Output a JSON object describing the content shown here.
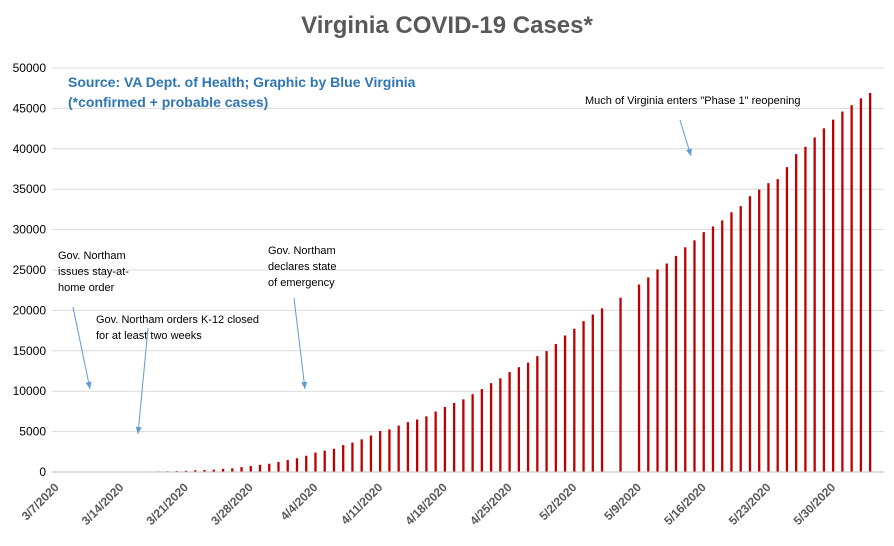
{
  "colors": {
    "bar": "#C00000",
    "grid": "#D9D9D9",
    "arrow": "#5B9BD5",
    "source": "#2E75B6",
    "title": "#595959"
  },
  "chart_data": {
    "type": "bar",
    "title": "Virginia COVID-19 Cases*",
    "source_line1": "Source: VA Dept. of Health; Graphic by Blue Virginia",
    "source_line2": "(*confirmed + probable cases)",
    "ylim": [
      0,
      50000
    ],
    "yticks": [
      0,
      5000,
      10000,
      15000,
      20000,
      25000,
      30000,
      35000,
      40000,
      45000,
      50000
    ],
    "grid": true,
    "start_date": "3/7/2020",
    "xtick_labels": [
      "3/7/2020",
      "3/14/2020",
      "3/21/2020",
      "3/28/2020",
      "4/4/2020",
      "4/11/2020",
      "4/18/2020",
      "4/25/2020",
      "5/2/2020",
      "5/9/2020",
      "5/16/2020",
      "5/23/2020",
      "5/30/2020"
    ],
    "x": [
      "3/7/2020",
      "3/8/2020",
      "3/9/2020",
      "3/10/2020",
      "3/11/2020",
      "3/12/2020",
      "3/13/2020",
      "3/14/2020",
      "3/15/2020",
      "3/16/2020",
      "3/17/2020",
      "3/18/2020",
      "3/19/2020",
      "3/20/2020",
      "3/21/2020",
      "3/22/2020",
      "3/23/2020",
      "3/24/2020",
      "3/25/2020",
      "3/26/2020",
      "3/27/2020",
      "3/28/2020",
      "3/29/2020",
      "3/30/2020",
      "3/31/2020",
      "4/1/2020",
      "4/2/2020",
      "4/3/2020",
      "4/4/2020",
      "4/5/2020",
      "4/6/2020",
      "4/7/2020",
      "4/8/2020",
      "4/9/2020",
      "4/10/2020",
      "4/11/2020",
      "4/12/2020",
      "4/13/2020",
      "4/14/2020",
      "4/15/2020",
      "4/16/2020",
      "4/17/2020",
      "4/18/2020",
      "4/19/2020",
      "4/20/2020",
      "4/21/2020",
      "4/22/2020",
      "4/23/2020",
      "4/24/2020",
      "4/25/2020",
      "4/26/2020",
      "4/27/2020",
      "4/28/2020",
      "4/29/2020",
      "4/30/2020",
      "5/1/2020",
      "5/2/2020",
      "5/3/2020",
      "5/4/2020",
      "5/5/2020",
      "5/6/2020",
      "5/7/2020",
      "5/8/2020",
      "5/9/2020",
      "5/10/2020",
      "5/11/2020",
      "5/12/2020",
      "5/13/2020",
      "5/14/2020",
      "5/15/2020",
      "5/16/2020",
      "5/17/2020",
      "5/18/2020",
      "5/19/2020",
      "5/20/2020",
      "5/21/2020",
      "5/22/2020",
      "5/23/2020",
      "5/24/2020",
      "5/25/2020",
      "5/26/2020",
      "5/27/2020",
      "5/28/2020",
      "5/29/2020",
      "5/30/2020",
      "5/31/2020",
      "6/1/2020",
      "6/2/2020",
      "6/3/2020",
      "6/4/2020"
    ],
    "values": [
      2,
      2,
      5,
      9,
      9,
      17,
      30,
      41,
      45,
      51,
      67,
      77,
      94,
      114,
      152,
      219,
      254,
      290,
      391,
      460,
      604,
      739,
      890,
      1020,
      1250,
      1484,
      1706,
      2012,
      2407,
      2637,
      2878,
      3333,
      3645,
      4042,
      4509,
      5077,
      5274,
      5747,
      6171,
      6500,
      6889,
      7491,
      8053,
      8537,
      8990,
      9630,
      10266,
      10998,
      11594,
      12366,
      12970,
      13535,
      14339,
      14961,
      15846,
      16901,
      17731,
      18671,
      19492,
      20256,
      null,
      21570,
      null,
      23196,
      24081,
      25070,
      25800,
      26746,
      27813,
      28672,
      29683,
      30388,
      31140,
      32145,
      32908,
      34137,
      34950,
      35749,
      36244,
      37727,
      39342,
      40249,
      41401,
      42533,
      43611,
      44607,
      45398,
      46239,
      46905,
      null
    ],
    "annotations": [
      {
        "lines": [
          "Gov. Northam",
          "issues stay-at-",
          "home order"
        ]
      },
      {
        "lines": [
          "Gov. Northam orders K-12 closed",
          "for at least two weeks"
        ]
      },
      {
        "lines": [
          "Gov. Northam",
          "declares state",
          "of emergency"
        ]
      },
      {
        "lines": [
          "Much of Virginia enters \"Phase 1\" reopening"
        ]
      }
    ]
  }
}
